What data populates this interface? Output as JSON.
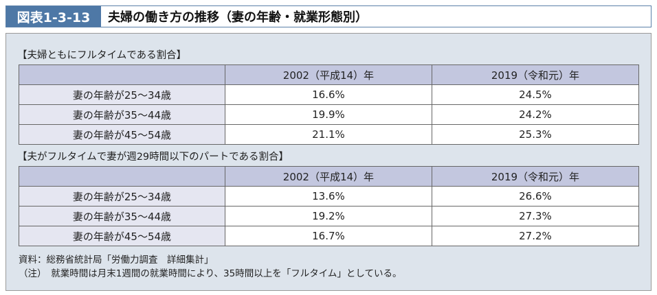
{
  "header": {
    "figure_no": "図表1-3-13",
    "title": "夫婦の働き方の推移（妻の年齢・就業形態別）"
  },
  "tables": [
    {
      "title": "【夫婦ともにフルタイムである割合】",
      "columns": [
        "",
        "2002（平成14）年",
        "2019（令和元）年"
      ],
      "rows": [
        [
          "妻の年齢が25～34歳",
          "16.6%",
          "24.5%"
        ],
        [
          "妻の年齢が35～44歳",
          "19.9%",
          "24.2%"
        ],
        [
          "妻の年齢が45～54歳",
          "21.1%",
          "25.3%"
        ]
      ]
    },
    {
      "title": "【夫がフルタイムで妻が週29時間以下のパートである割合】",
      "columns": [
        "",
        "2002（平成14）年",
        "2019（令和元）年"
      ],
      "rows": [
        [
          "妻の年齢が25～34歳",
          "13.6%",
          "26.6%"
        ],
        [
          "妻の年齢が35～44歳",
          "19.2%",
          "27.3%"
        ],
        [
          "妻の年齢が45～54歳",
          "16.7%",
          "27.2%"
        ]
      ]
    }
  ],
  "notes": [
    "資料：総務省統計局「労働力調査　詳細集計」",
    "（注）　就業時間は月末1週間の就業時間により、35時間以上を「フルタイム」としている。"
  ]
}
